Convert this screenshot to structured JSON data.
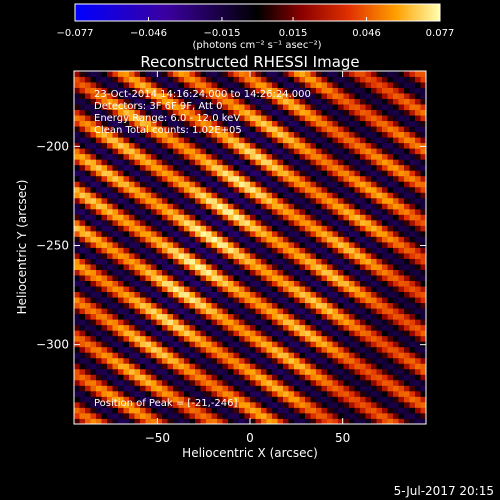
{
  "chart_data": {
    "type": "heatmap",
    "title": "Reconstructed RHESSI Image",
    "xlabel": "Heliocentric X (arcsec)",
    "ylabel": "Heliocentric Y (arcsec)",
    "xlim": [
      -95,
      95
    ],
    "ylim": [
      -340,
      -162
    ],
    "x_ticks": [
      -50,
      0,
      50
    ],
    "y_ticks": [
      -200,
      -250,
      -300
    ],
    "colorbar": {
      "range": [
        -0.077,
        0.077
      ],
      "tick_values": [
        -0.077,
        -0.046,
        -0.015,
        0.015,
        0.046,
        0.077
      ],
      "tick_labels": [
        "−0.077",
        "−0.046",
        "−0.015",
        "0.015",
        "0.046",
        "0.077"
      ],
      "unit_label": "(photons cm⁻² s⁻¹ asec⁻²)"
    },
    "annotations": [
      "23-Oct-2014 14:16:24.000 to 14:26:24.000",
      "Detectors: 3F 6F 9F, Att 0",
      "Energy Range: 6.0 - 12.0 keV",
      "Clean    Total counts: 1.02E+05"
    ],
    "peak": {
      "x": -21,
      "y": -246
    },
    "peak_label": "Position of Peak = [-21,-246]",
    "stripe_angle_deg": 30,
    "stripe_period_arcsec": 16,
    "amplitude": 0.077
  },
  "footer": {
    "date": "5-Jul-2017 20:15"
  }
}
